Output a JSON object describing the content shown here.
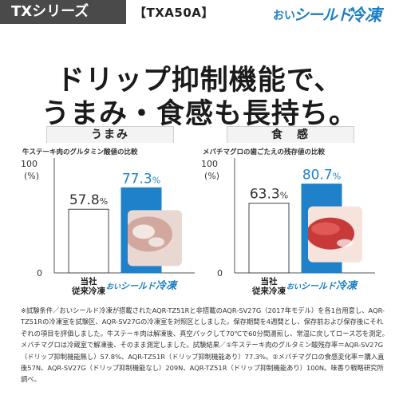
{
  "header": {
    "series": "TXシリーズ",
    "model": "【TXA50A】",
    "brand": {
      "oi": "おい",
      "shield": "シールド",
      "reitou": "冷凍",
      "color": "#1a7fc4"
    }
  },
  "headline": {
    "line1": "ドリップ抑制機能で、",
    "line2": "うまみ・食感も長持ち。"
  },
  "chart_data": [
    {
      "type": "bar",
      "title": "うまみ",
      "subtitle": "牛ステーキ肉のグルタミン酸値の比較",
      "ylabel": "(%)",
      "ylim": [
        0,
        100
      ],
      "yticks": [
        "100",
        "0"
      ],
      "categories": [
        "当社\n従来冷凍",
        "おいシールド冷凍"
      ],
      "values": [
        57.8,
        77.3
      ],
      "value_labels": [
        "57.8%",
        "77.3%"
      ],
      "colors": [
        "#ffffff",
        "#1e81c9"
      ],
      "photo": "beef-photo"
    },
    {
      "type": "bar",
      "title": "食　感",
      "subtitle": "メバチマグロの歯ごたえの残存値の比較",
      "ylabel": "(%)",
      "ylim": [
        0,
        100
      ],
      "yticks": [
        "100",
        "0"
      ],
      "categories": [
        "当社\n従来冷凍",
        "おいシールド冷凍"
      ],
      "values": [
        63.3,
        80.7
      ],
      "value_labels": [
        "63.3%",
        "80.7%"
      ],
      "colors": [
        "#ffffff",
        "#1e81c9"
      ],
      "photo": "tuna-photo"
    }
  ],
  "footnote": "※試験条件／おいシールド冷凍が搭載されたAQR-TZ51Rと非搭載のAQR-SV27G（2017年モデル）を各1台用意し、AQR-TZ51Rの冷凍室を試験区、AQR-SV27Gの冷凍室を対照区としました。保存期間を4週間とし、保存前および保存後にそれぞれの項目を評価しました。牛ステーキ肉は解凍後、真空パックして70℃で60分間湯煎し、常温に戻してロース芯を測定。メバチマグロは冷蔵室で解凍後、そのまま測定しました。試験結果／①牛ステーキ肉のグルタミン酸残存率＝AQR-SV27G（ドリップ抑制機能無し）57.8%、AQR-TZ51R（ドリップ抑制機能あり）77.3%。②メバチマグロの食感変化率＝購入直後57N、AQR-SV27G（ドリップ抑制機能なし）209N、AQR-TZ51R（ドリップ抑制機能あり）100N。味香り戦略研究所調べ。"
}
